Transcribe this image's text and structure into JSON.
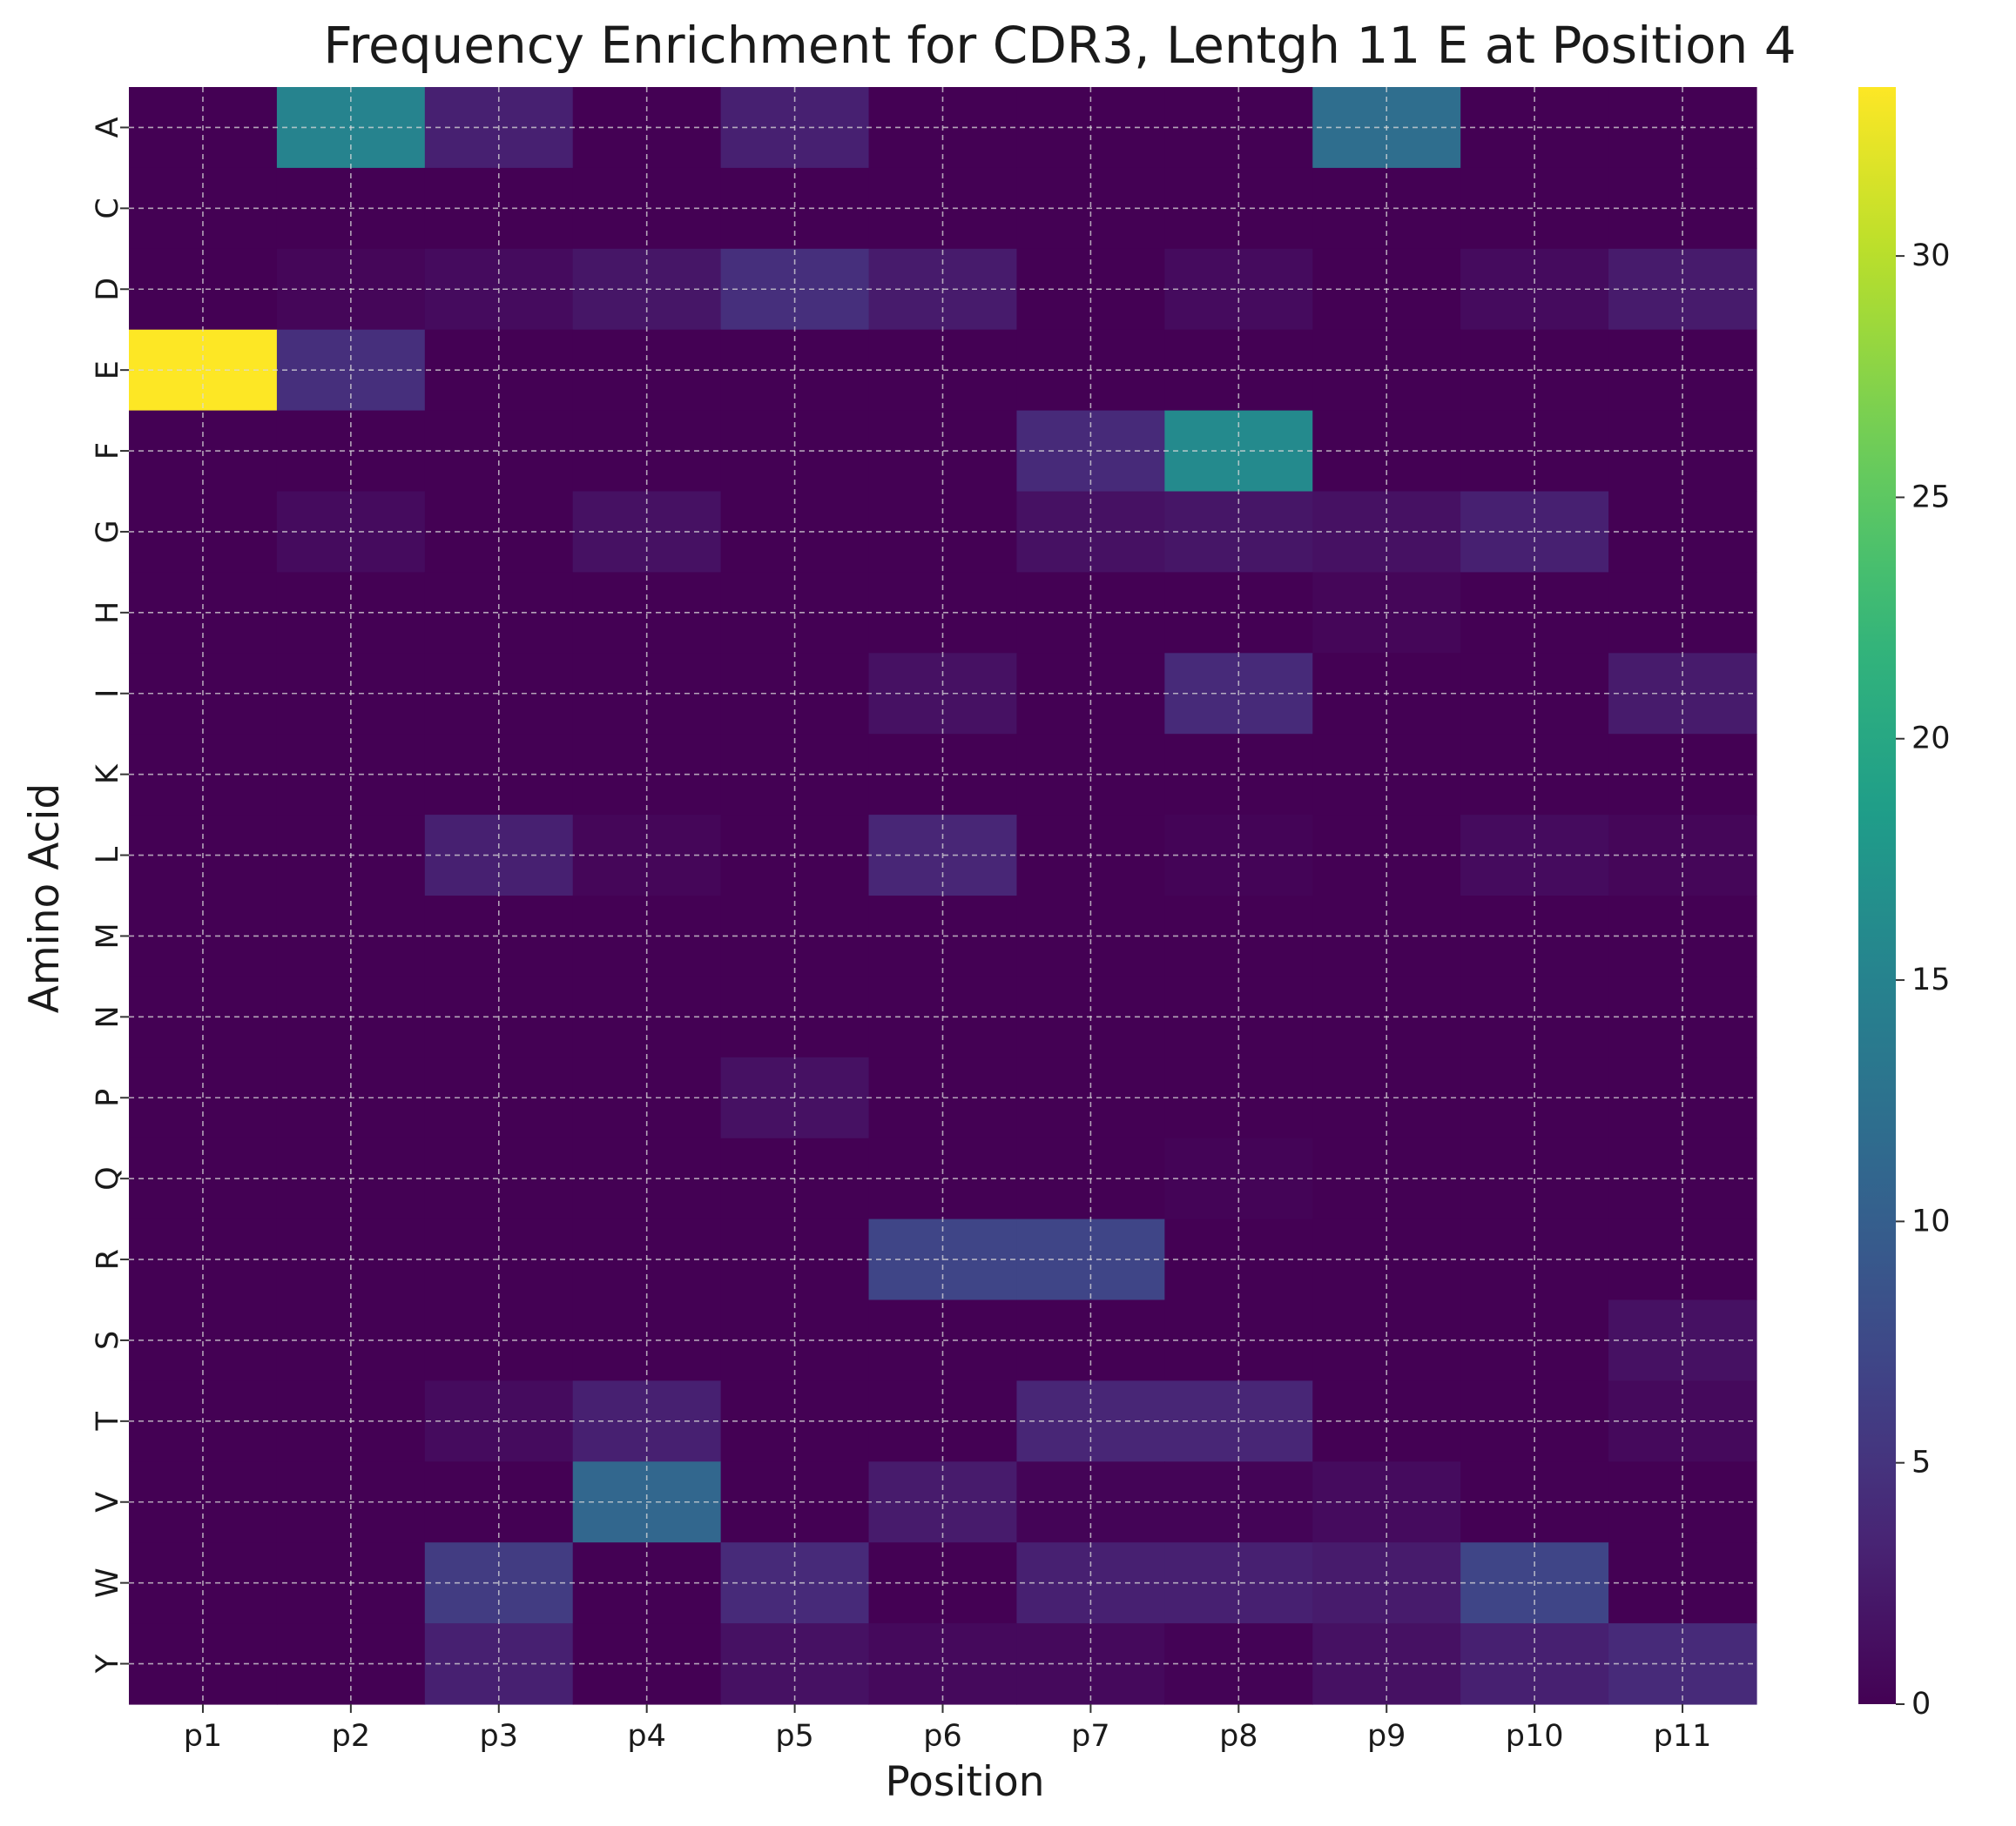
{
  "chart_data": {
    "type": "heatmap",
    "title": "Frequency Enrichment for CDR3, Lentgh 11 E at Position 4",
    "xlabel": "Position",
    "ylabel": "Amino Acid",
    "x_categories": [
      "p1",
      "p2",
      "p3",
      "p4",
      "p5",
      "p6",
      "p7",
      "p8",
      "p9",
      "p10",
      "p11"
    ],
    "y_categories": [
      "A",
      "C",
      "D",
      "E",
      "F",
      "G",
      "H",
      "I",
      "K",
      "L",
      "M",
      "N",
      "P",
      "Q",
      "R",
      "S",
      "T",
      "V",
      "W",
      "Y"
    ],
    "values": [
      [
        0,
        15,
        3,
        0,
        3,
        0,
        0,
        0,
        12,
        0,
        0
      ],
      [
        0,
        0,
        0,
        0,
        0,
        0,
        0,
        0,
        0,
        0,
        0
      ],
      [
        0,
        0.5,
        1,
        2,
        4.5,
        2.5,
        0,
        1,
        0,
        1,
        2.5
      ],
      [
        33.5,
        4.5,
        0,
        0,
        0,
        0,
        0,
        0,
        0,
        0,
        0
      ],
      [
        0,
        0,
        0,
        0,
        0,
        0,
        4,
        16,
        0,
        0,
        0
      ],
      [
        0,
        1,
        0,
        1.5,
        0,
        0,
        1.5,
        2,
        1.5,
        3,
        0
      ],
      [
        0,
        0,
        0,
        0,
        0,
        0,
        0,
        0,
        0.5,
        0,
        0
      ],
      [
        0,
        0,
        0,
        0,
        0,
        1.5,
        0,
        4,
        0,
        0,
        2.5
      ],
      [
        0,
        0,
        0,
        0,
        0,
        0,
        0,
        0,
        0,
        0,
        0
      ],
      [
        0,
        0,
        3,
        0.5,
        0,
        3.5,
        0,
        0.3,
        0,
        1,
        0.5
      ],
      [
        0,
        0,
        0,
        0,
        0,
        0,
        0,
        0,
        0,
        0,
        0
      ],
      [
        0,
        0,
        0,
        0,
        0,
        0,
        0,
        0,
        0,
        0,
        0
      ],
      [
        0,
        0,
        0,
        0,
        1.5,
        0,
        0,
        0,
        0,
        0,
        0
      ],
      [
        0,
        0,
        0,
        0,
        0,
        0,
        0,
        0.3,
        0,
        0,
        0
      ],
      [
        0,
        0,
        0,
        0,
        0,
        7,
        7,
        0,
        0,
        0,
        0
      ],
      [
        0,
        0,
        0,
        0,
        0,
        0,
        0,
        0,
        0,
        0,
        1.5
      ],
      [
        0,
        0,
        1,
        3,
        0,
        0,
        3.5,
        3.5,
        0,
        0,
        0.8
      ],
      [
        0,
        0,
        0,
        11,
        0,
        2.5,
        0.3,
        0.3,
        1,
        0,
        0
      ],
      [
        0,
        0,
        6,
        0,
        4,
        0,
        3,
        3,
        2.5,
        7,
        0
      ],
      [
        0,
        0,
        3,
        0,
        1.5,
        0.8,
        0.8,
        0.2,
        1.5,
        3,
        4
      ]
    ],
    "zlim": [
      0,
      33.5
    ],
    "colorbar_ticks": [
      0,
      5,
      10,
      15,
      20,
      25,
      30
    ],
    "colormap": "viridis",
    "grid": true,
    "legend": "colorbar-right"
  }
}
